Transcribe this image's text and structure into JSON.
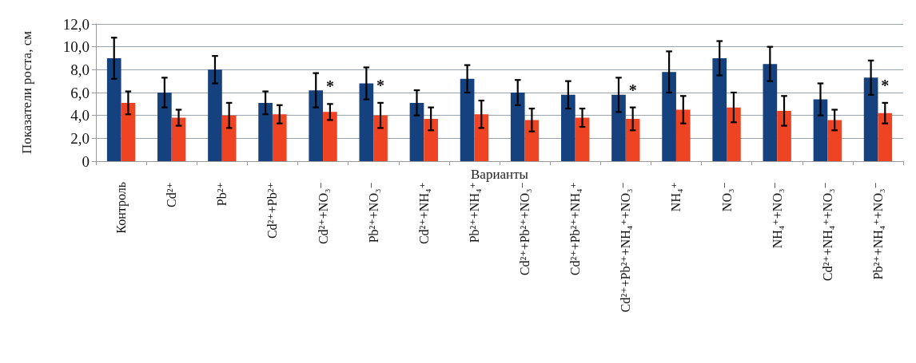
{
  "chart_data": {
    "type": "bar",
    "ylabel": "Показатели роста, см",
    "xlabel": "Варианты",
    "categories": [
      "Контроль",
      "Cd²⁺",
      "Pb²⁺",
      "Cd²⁺+Pb²⁺",
      "Cd²⁺+NO₃⁻",
      "Pb²⁺+NO₃⁻",
      "Cd²⁺+NH₄⁺",
      "Pb²⁺+NH₄⁺",
      "Cd²⁺+Pb²⁺+NO₃⁻",
      "Cd²⁺+Pb²⁺+NH₄⁺",
      "Cd²⁺+Pb²⁺+NH₄⁺+NO₃⁻",
      "NH₄⁺",
      "NO₃⁻",
      "NH₄⁺+NO₃⁻",
      "Cd²⁺+NH₄⁺+NO₃⁻",
      "Pb²⁺+NH₄⁺+NO₃⁻"
    ],
    "series": [
      {
        "color": "#15427f",
        "values": [
          9.0,
          6.0,
          8.0,
          5.1,
          6.2,
          6.8,
          5.1,
          7.2,
          6.0,
          5.8,
          5.8,
          7.8,
          9.0,
          8.5,
          5.4,
          7.3
        ],
        "errors": [
          1.8,
          1.3,
          1.2,
          1.0,
          1.5,
          1.4,
          1.1,
          1.2,
          1.1,
          1.2,
          1.5,
          1.8,
          1.5,
          1.5,
          1.4,
          1.5
        ]
      },
      {
        "color": "#ee4423",
        "values": [
          5.1,
          3.8,
          4.0,
          4.1,
          4.3,
          4.0,
          3.7,
          4.1,
          3.6,
          3.8,
          3.7,
          4.5,
          4.7,
          4.4,
          3.6,
          4.2
        ],
        "errors": [
          1.0,
          0.7,
          1.1,
          0.8,
          0.7,
          1.1,
          1.0,
          1.2,
          1.0,
          0.8,
          1.0,
          1.2,
          1.3,
          1.3,
          0.9,
          0.9
        ]
      }
    ],
    "ylim": [
      0,
      12
    ],
    "yticks": [
      0,
      {
        "value": 2,
        "label": "2,0"
      },
      {
        "value": 4,
        "label": "4,0"
      },
      {
        "value": 6,
        "label": "6,0"
      },
      {
        "value": 8,
        "label": "8,0"
      },
      {
        "value": 10,
        "label": "10,0"
      },
      {
        "value": 12,
        "label": "12,0"
      }
    ],
    "grid": "y",
    "annotations": [
      {
        "text": "*",
        "x": "Cd²⁺+NO₃⁻",
        "y": 4.3
      },
      {
        "text": "*",
        "x": "Pb²⁺+NO₃⁻",
        "y": 4.0
      },
      {
        "text": "*",
        "x": "Cd²⁺+Pb²⁺+NH₄⁺+NO₃⁻",
        "y": 3.7
      },
      {
        "text": "*",
        "x": "Pb²⁺+NH₄⁺+NO₃⁻",
        "y": 4.2
      }
    ]
  }
}
